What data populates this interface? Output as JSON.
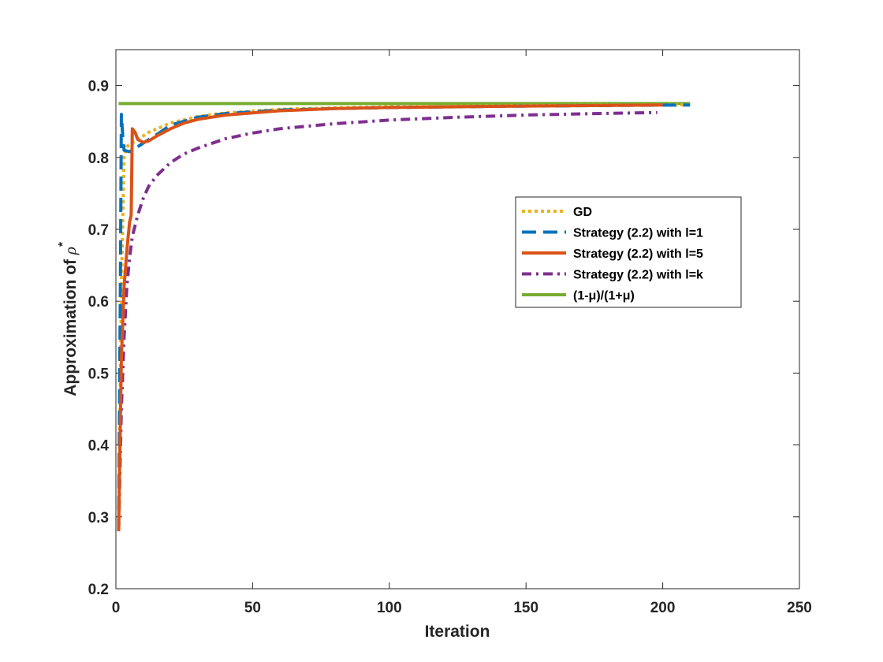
{
  "chart_data": {
    "type": "line",
    "xlabel": "Iteration",
    "ylabel_main": "Approximation of ",
    "ylabel_symbol": "ρ",
    "ylabel_sup": "*",
    "xlim": [
      0,
      250
    ],
    "ylim": [
      0.2,
      0.95
    ],
    "xticks": [
      0,
      50,
      100,
      150,
      200,
      250
    ],
    "yticks": [
      0.2,
      0.3,
      0.4,
      0.5,
      0.6,
      0.7,
      0.8,
      0.9
    ],
    "grid": false,
    "legend_position": "right",
    "series": [
      {
        "name": "GD",
        "color": "#EDB120",
        "style": "dotted",
        "points": [
          [
            1,
            0.28
          ],
          [
            2,
            0.62
          ],
          [
            3,
            0.8
          ],
          [
            4,
            0.815
          ],
          [
            5,
            0.818
          ],
          [
            8,
            0.825
          ],
          [
            12,
            0.835
          ],
          [
            20,
            0.848
          ],
          [
            30,
            0.857
          ],
          [
            40,
            0.862
          ],
          [
            60,
            0.867
          ],
          [
            80,
            0.869
          ],
          [
            100,
            0.8705
          ],
          [
            150,
            0.872
          ],
          [
            200,
            0.873
          ],
          [
            210,
            0.8733
          ]
        ]
      },
      {
        "name": "Strategy (2.2) with l=1",
        "color": "#0072BD",
        "style": "dashed",
        "points": [
          [
            1,
            0.28
          ],
          [
            1.6,
            0.6
          ],
          [
            2,
            0.86
          ],
          [
            2.5,
            0.83
          ],
          [
            3,
            0.81
          ],
          [
            5,
            0.808
          ],
          [
            8,
            0.815
          ],
          [
            10,
            0.82
          ],
          [
            15,
            0.832
          ],
          [
            20,
            0.845
          ],
          [
            30,
            0.856
          ],
          [
            40,
            0.861
          ],
          [
            60,
            0.866
          ],
          [
            80,
            0.868
          ],
          [
            100,
            0.8695
          ],
          [
            150,
            0.8715
          ],
          [
            200,
            0.8728
          ],
          [
            210,
            0.873
          ]
        ]
      },
      {
        "name": "Strategy (2.2) with l=5",
        "color": "#D95319",
        "style": "solid",
        "points": [
          [
            1,
            0.28
          ],
          [
            2,
            0.52
          ],
          [
            3,
            0.62
          ],
          [
            4,
            0.67
          ],
          [
            5,
            0.71
          ],
          [
            5.6,
            0.72
          ],
          [
            6,
            0.84
          ],
          [
            7,
            0.835
          ],
          [
            8,
            0.825
          ],
          [
            10,
            0.821
          ],
          [
            12,
            0.823
          ],
          [
            15,
            0.83
          ],
          [
            20,
            0.84
          ],
          [
            25,
            0.848
          ],
          [
            30,
            0.853
          ],
          [
            40,
            0.859
          ],
          [
            50,
            0.862
          ],
          [
            60,
            0.865
          ],
          [
            80,
            0.868
          ],
          [
            100,
            0.8695
          ],
          [
            150,
            0.8715
          ],
          [
            200,
            0.873
          ]
        ]
      },
      {
        "name": "Strategy (2.2) with l=k",
        "color": "#7E2F8E",
        "style": "dashdot",
        "points": [
          [
            1,
            0.28
          ],
          [
            2,
            0.45
          ],
          [
            3,
            0.55
          ],
          [
            4,
            0.62
          ],
          [
            5,
            0.66
          ],
          [
            6,
            0.69
          ],
          [
            8,
            0.72
          ],
          [
            10,
            0.743
          ],
          [
            12,
            0.76
          ],
          [
            15,
            0.775
          ],
          [
            20,
            0.793
          ],
          [
            25,
            0.805
          ],
          [
            30,
            0.813
          ],
          [
            40,
            0.826
          ],
          [
            50,
            0.834
          ],
          [
            60,
            0.84
          ],
          [
            80,
            0.847
          ],
          [
            100,
            0.852
          ],
          [
            125,
            0.856
          ],
          [
            150,
            0.859
          ],
          [
            175,
            0.861
          ],
          [
            198,
            0.8625
          ]
        ]
      },
      {
        "name": "(1-μ)/(1+μ)",
        "color": "#77AC30",
        "style": "solid",
        "points": [
          [
            1,
            0.875
          ],
          [
            210,
            0.875
          ]
        ]
      }
    ]
  }
}
